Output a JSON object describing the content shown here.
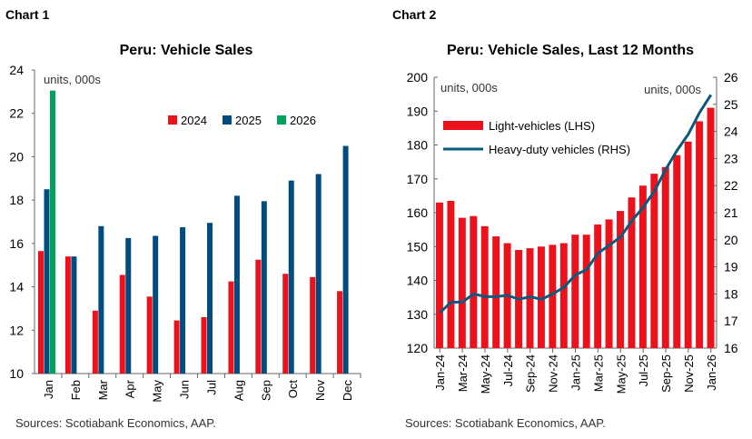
{
  "chart_labels": [
    "Chart 1",
    "Chart 2"
  ],
  "chart_data": [
    {
      "type": "bar",
      "title": "Peru: Vehicle Sales",
      "unit_note": "units, 000s",
      "ylim": [
        10,
        24
      ],
      "yticks": [
        10,
        12,
        14,
        16,
        18,
        20,
        22,
        24
      ],
      "categories": [
        "Jan",
        "Feb",
        "Mar",
        "Apr",
        "May",
        "Jun",
        "Jul",
        "Aug",
        "Sep",
        "Oct",
        "Nov",
        "Dec"
      ],
      "series": [
        {
          "name": "2024",
          "color": "#ec111a",
          "values": [
            15.65,
            15.4,
            12.9,
            14.55,
            13.55,
            12.45,
            12.6,
            14.25,
            15.25,
            14.6,
            14.45,
            13.8
          ]
        },
        {
          "name": "2025",
          "color": "#004c7e",
          "values": [
            18.5,
            15.4,
            16.8,
            16.25,
            16.35,
            16.75,
            16.95,
            18.2,
            17.95,
            18.9,
            19.2,
            20.5
          ]
        },
        {
          "name": "2026",
          "color": "#00a35c",
          "values": [
            23.05,
            null,
            null,
            null,
            null,
            null,
            null,
            null,
            null,
            null,
            null,
            null
          ]
        }
      ],
      "legend": "top-right",
      "source": "Sources: Scotiabank Economics, AAP."
    },
    {
      "type": "bar+line",
      "title": "Peru: Vehicle Sales, Last 12 Months",
      "unit_note_left": "units, 000s",
      "unit_note_right": "units, 000s",
      "ylim": [
        120,
        200
      ],
      "yticks": [
        120,
        130,
        140,
        150,
        160,
        170,
        180,
        190,
        200
      ],
      "y2lim": [
        16,
        26
      ],
      "y2ticks": [
        16,
        17,
        18,
        19,
        20,
        21,
        22,
        23,
        24,
        25,
        26
      ],
      "categories": [
        "Jan-24",
        "Feb-24",
        "Mar-24",
        "Apr-24",
        "May-24",
        "Jun-24",
        "Jul-24",
        "Aug-24",
        "Sep-24",
        "Oct-24",
        "Nov-24",
        "Dec-24",
        "Jan-25",
        "Feb-25",
        "Mar-25",
        "Apr-25",
        "May-25",
        "Jun-25",
        "Jul-25",
        "Aug-25",
        "Sep-25",
        "Oct-25",
        "Nov-25",
        "Dec-25",
        "Jan-26"
      ],
      "xtick_labels": [
        "Jan-24",
        "Mar-24",
        "May-24",
        "Jul-24",
        "Sep-24",
        "Nov-24",
        "Jan-25",
        "Mar-25",
        "May-25",
        "Jul-25",
        "Sep-25",
        "Nov-25",
        "Jan-26"
      ],
      "series": [
        {
          "name": "Light-vehicles (LHS)",
          "kind": "bar",
          "axis": "left",
          "color": "#ec111a",
          "values": [
            163,
            163.5,
            158.5,
            159,
            156,
            153,
            151,
            149,
            149.5,
            150,
            150.5,
            151,
            153.5,
            153.5,
            156.5,
            158,
            160.5,
            164.5,
            168,
            171.5,
            173.5,
            177,
            181,
            187,
            191
          ]
        },
        {
          "name": "Heavy-duty vehicles (RHS)",
          "kind": "line",
          "axis": "right",
          "color": "#0a5a80",
          "values": [
            17.3,
            17.7,
            17.7,
            18.0,
            17.9,
            17.9,
            17.95,
            17.8,
            17.9,
            17.8,
            18.0,
            18.25,
            18.7,
            18.9,
            19.5,
            19.8,
            20.1,
            20.7,
            21.2,
            21.8,
            22.6,
            23.3,
            23.9,
            24.7,
            25.35
          ]
        }
      ],
      "legend": "top-left",
      "source": "Sources: Scotiabank Economics, AAP."
    }
  ]
}
